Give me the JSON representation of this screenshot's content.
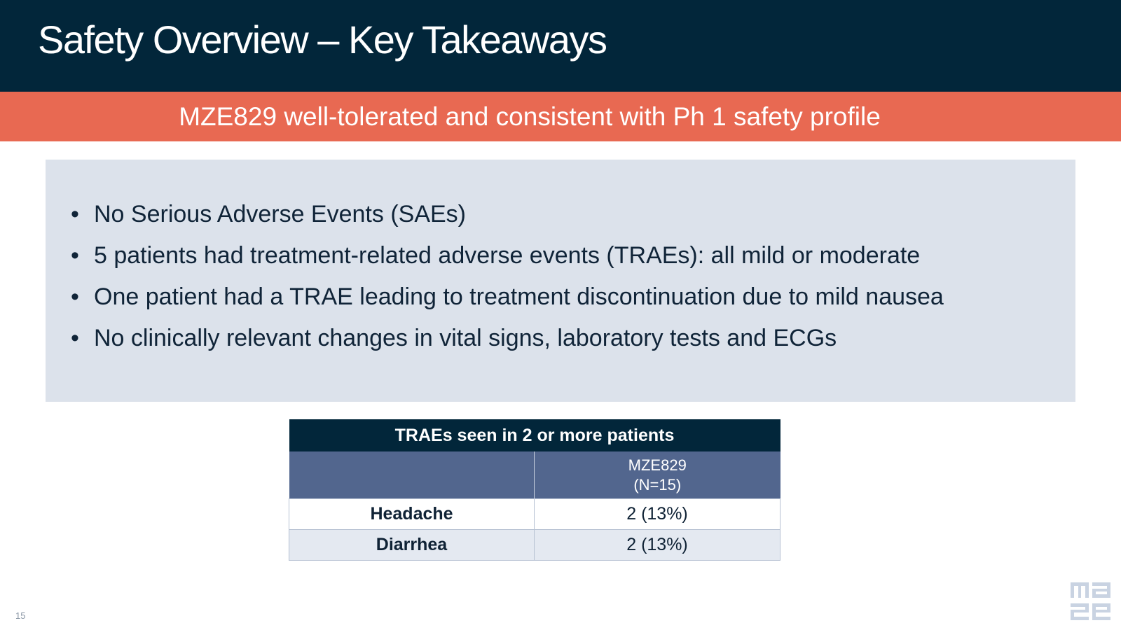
{
  "slide": {
    "title": "Safety Overview – Key Takeaways",
    "subtitle": "MZE829 well-tolerated and consistent with Ph 1 safety profile",
    "page_number": "15"
  },
  "bullets": [
    "No Serious Adverse Events (SAEs)",
    "5 patients had treatment-related adverse events (TRAEs): all mild or moderate",
    "One patient had a TRAE leading to treatment discontinuation due to mild nausea",
    "No clinically relevant changes in vital signs, laboratory tests and ECGs"
  ],
  "bullet_glyph": "•",
  "table": {
    "title": "TRAEs seen in 2 or more patients",
    "column_header_empty": "",
    "column_header_line1": "MZE829",
    "column_header_line2": "(N=15)",
    "rows": [
      {
        "event": "Headache",
        "value": "2 (13%)"
      },
      {
        "event": "Diarrhea",
        "value": "2 (13%)"
      }
    ]
  },
  "logo": {
    "icon": "maze-logo-icon",
    "color": "#c9d3e2"
  },
  "colors": {
    "title_bar": "#02263a",
    "subtitle_bar": "#e86952",
    "bullet_box": "#dce2eb",
    "table_header": "#02263a",
    "table_subheader": "#52668e"
  }
}
